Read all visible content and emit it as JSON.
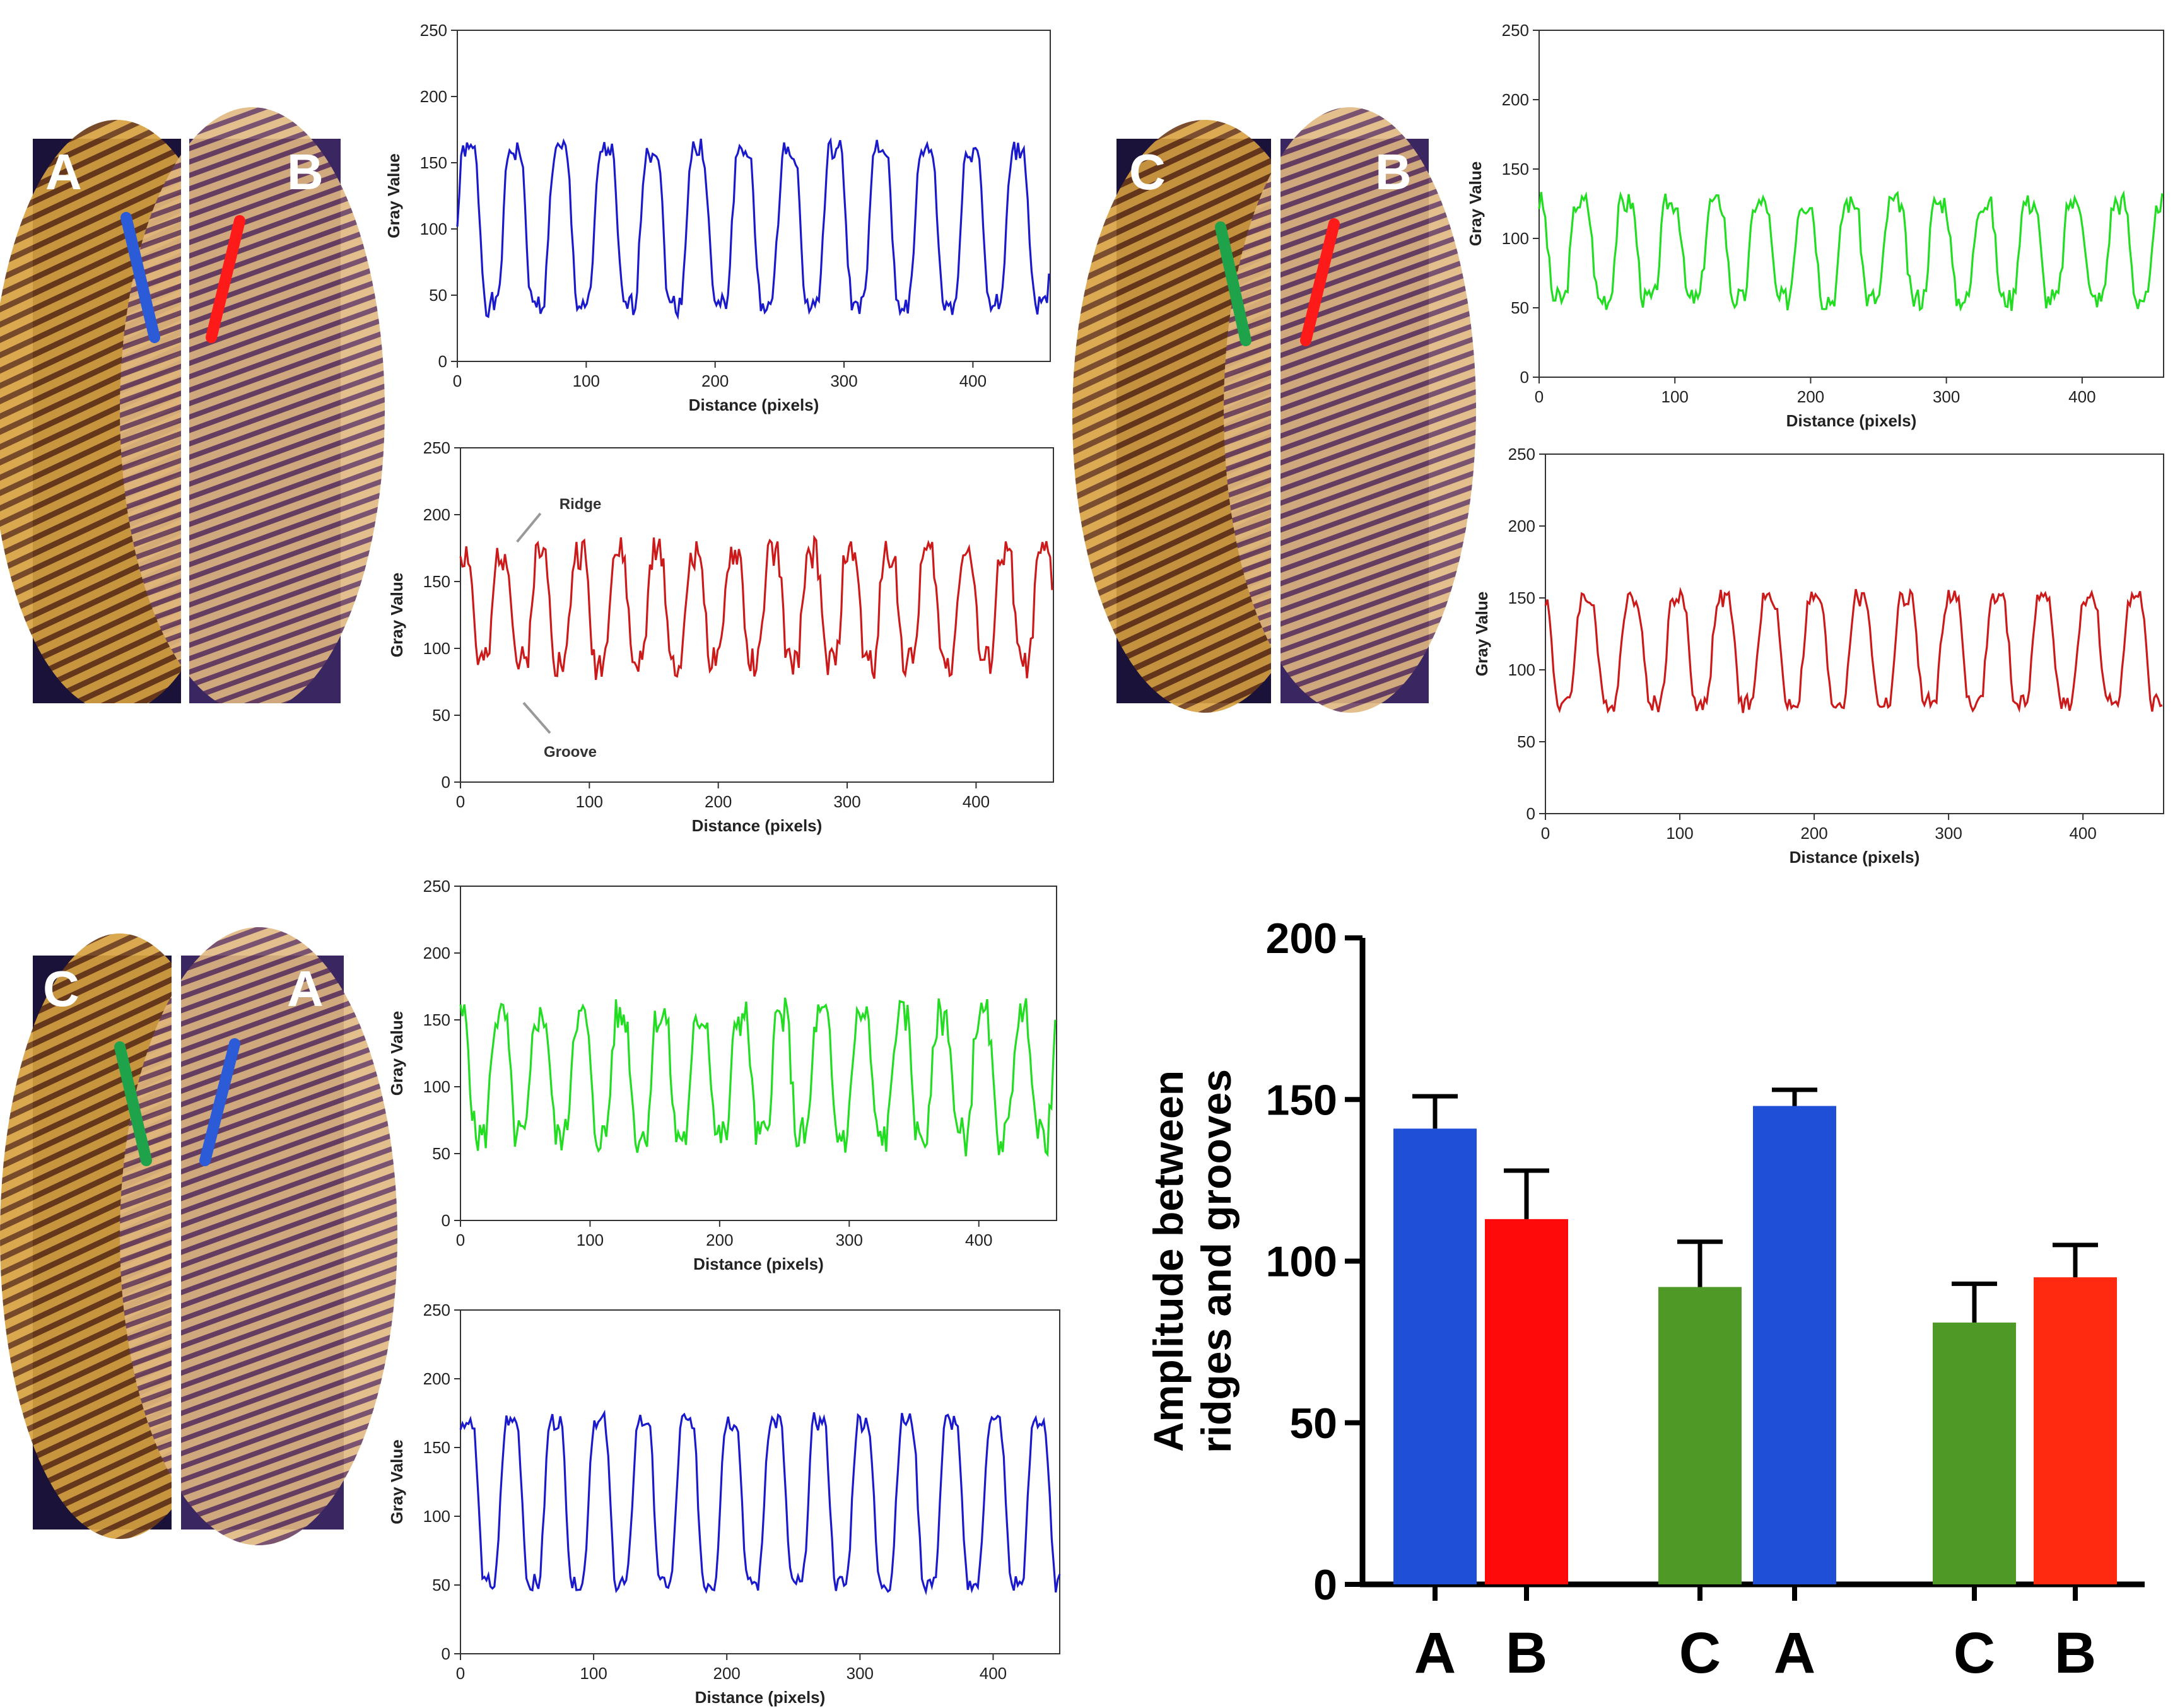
{
  "figure": {
    "panels": [
      {
        "id": "top-left",
        "labels": [
          "A",
          "B"
        ],
        "line_colors": [
          "#2b5bd6",
          "#ff1a1a"
        ]
      },
      {
        "id": "top-right",
        "labels": [
          "C",
          "B"
        ],
        "line_colors": [
          "#1fa34a",
          "#ff1a1a"
        ]
      },
      {
        "id": "bottom-left",
        "labels": [
          "C",
          "A"
        ],
        "line_colors": [
          "#1fa34a",
          "#2b5bd6"
        ]
      }
    ]
  },
  "chart_data": [
    {
      "type": "line",
      "id": "profile-A-blue",
      "color": "#1a1acc",
      "xlabel": "Distance (pixels)",
      "ylabel": "Gray Value",
      "xlim": [
        0,
        460
      ],
      "ylim": [
        0,
        250
      ],
      "xticks": [
        "0",
        "100",
        "200",
        "300",
        "400"
      ],
      "yticks": [
        "0",
        "50",
        "100",
        "150",
        "200",
        "250"
      ],
      "period": 35.5,
      "phase": 0,
      "high": 170,
      "low": 32,
      "noise": 8
    },
    {
      "type": "line",
      "id": "profile-B-red",
      "color": "#cc1a1a",
      "xlabel": "Distance (pixels)",
      "ylabel": "Gray Value",
      "xlim": [
        0,
        460
      ],
      "ylim": [
        0,
        250
      ],
      "xticks": [
        "0",
        "100",
        "200",
        "300",
        "400"
      ],
      "yticks": [
        "0",
        "50",
        "100",
        "150",
        "200",
        "250"
      ],
      "period": 30,
      "phase": 5,
      "high": 178,
      "low": 82,
      "noise": 12,
      "annotations": [
        {
          "text": "Ridge",
          "x": 40,
          "y": 175
        },
        {
          "text": "Groove",
          "x": 45,
          "y": 65
        }
      ]
    },
    {
      "type": "line",
      "id": "profile-C-green-top",
      "color": "#22dd22",
      "xlabel": "Distance (pixels)",
      "ylabel": "Gray Value",
      "xlim": [
        0,
        460
      ],
      "ylim": [
        0,
        250
      ],
      "xticks": [
        "0",
        "100",
        "200",
        "300",
        "400"
      ],
      "yticks": [
        "0",
        "50",
        "100",
        "150",
        "200",
        "250"
      ],
      "period": 33,
      "phase": 10,
      "high": 132,
      "low": 50,
      "noise": 8
    },
    {
      "type": "line",
      "id": "profile-B-red-right",
      "color": "#cc1a1a",
      "xlabel": "Distance (pixels)",
      "ylabel": "Gray Value",
      "xlim": [
        0,
        460
      ],
      "ylim": [
        0,
        250
      ],
      "xticks": [
        "0",
        "100",
        "200",
        "300",
        "400"
      ],
      "yticks": [
        "0",
        "50",
        "100",
        "150",
        "200",
        "250"
      ],
      "period": 34,
      "phase": 12,
      "high": 156,
      "low": 70,
      "noise": 6
    },
    {
      "type": "line",
      "id": "profile-C-green-bottom",
      "color": "#22dd22",
      "xlabel": "Distance (pixels)",
      "ylabel": "Gray Value",
      "xlim": [
        0,
        460
      ],
      "ylim": [
        0,
        250
      ],
      "xticks": [
        "0",
        "100",
        "200",
        "300",
        "400"
      ],
      "yticks": [
        "0",
        "50",
        "100",
        "150",
        "200",
        "250"
      ],
      "period": 31,
      "phase": 8,
      "high": 160,
      "low": 55,
      "noise": 14
    },
    {
      "type": "line",
      "id": "profile-A-blue-bottom",
      "color": "#1a1acc",
      "xlabel": "Distance (pixels)",
      "ylabel": "Gray Value",
      "xlim": [
        0,
        450
      ],
      "ylim": [
        0,
        250
      ],
      "xticks": [
        "0",
        "100",
        "200",
        "300",
        "400"
      ],
      "yticks": [
        "0",
        "50",
        "100",
        "150",
        "200",
        "250"
      ],
      "period": 33,
      "phase": 3,
      "high": 180,
      "low": 40,
      "noise": 6
    },
    {
      "type": "bar",
      "id": "amplitude-bar-chart",
      "ylabel": "Amplitude between ridges and grooves",
      "ylim": [
        0,
        200
      ],
      "yticks": [
        "0",
        "50",
        "100",
        "150",
        "200"
      ],
      "categories": [
        "A",
        "B",
        "C",
        "A",
        "C",
        "B"
      ],
      "values": [
        141,
        113,
        92,
        148,
        81,
        95
      ],
      "errors": [
        10,
        15,
        14,
        5,
        12,
        10
      ],
      "colors": [
        "#1f4fd6",
        "#ff0a0a",
        "#4f9a26",
        "#1f4fd6",
        "#4f9a26",
        "#ff2a10"
      ]
    }
  ]
}
